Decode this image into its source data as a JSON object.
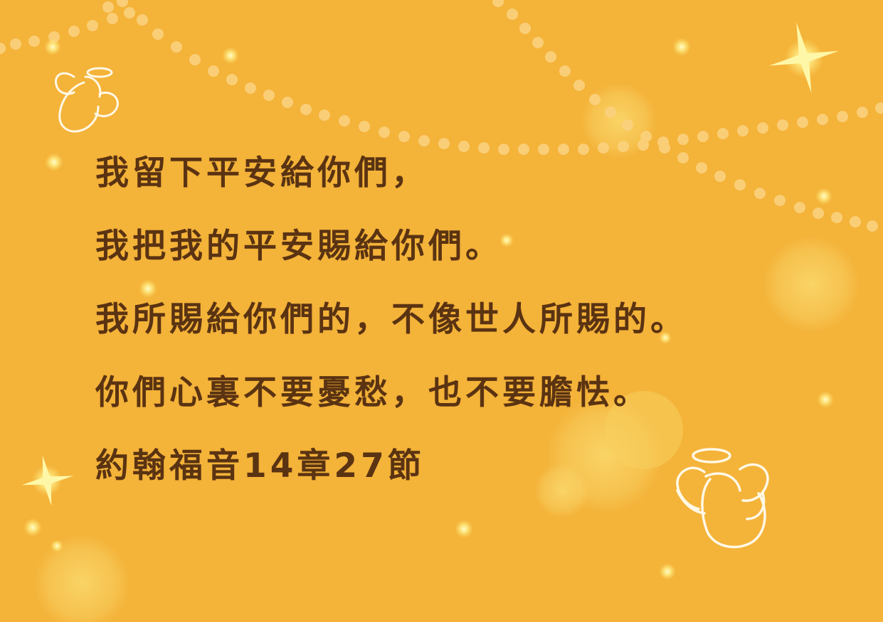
{
  "verse": {
    "lines": [
      "我留下平安給你們，",
      "我把我的平安賜給你們。",
      "我所賜給你們的，不像世人所賜的。",
      "你們心裏不要憂愁，也不要膽怯。"
    ],
    "reference": "約翰福音14章27節"
  },
  "colors": {
    "background": "#f4b339",
    "text": "#5a3312",
    "pearl": "#fbd27e",
    "glow": "#fff6a0",
    "outline": "#fff8e6"
  },
  "decorations": {
    "icons": [
      "angel-icon",
      "sparkle-icon",
      "pearl-strand",
      "glow-dot"
    ]
  }
}
